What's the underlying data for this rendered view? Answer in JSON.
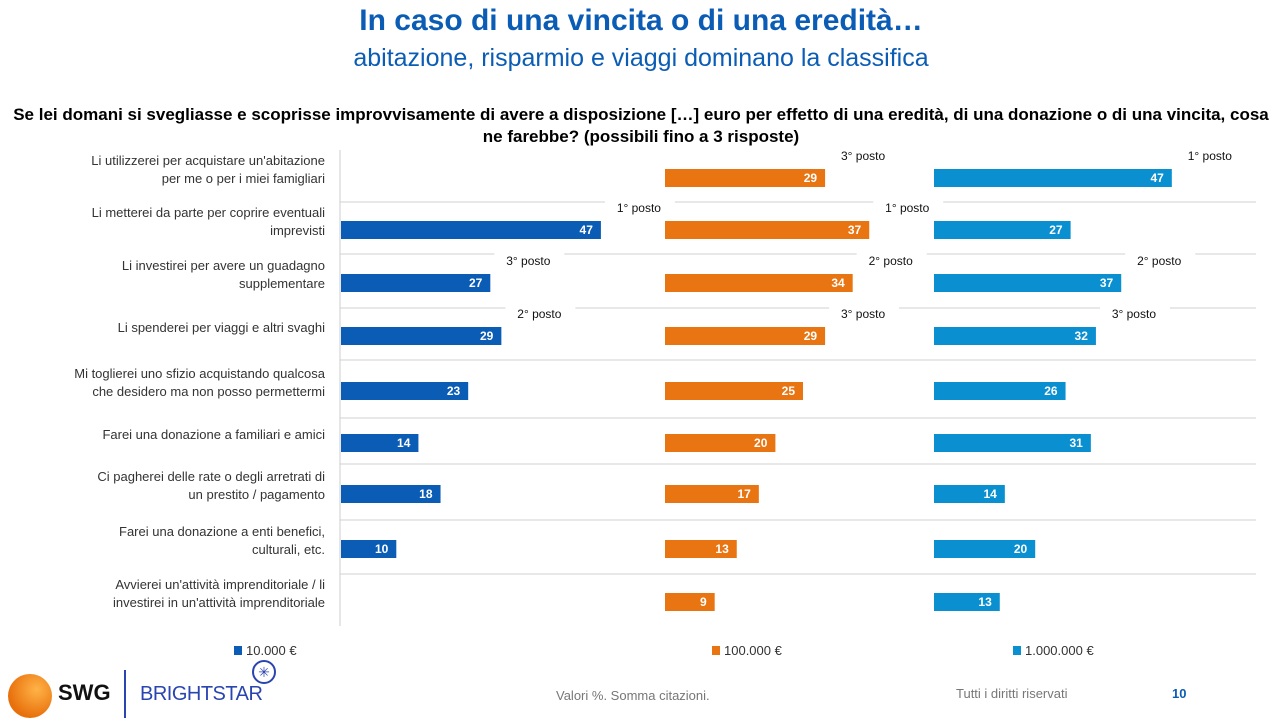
{
  "header": {
    "title": "In caso di una vincita o di una eredità…",
    "subtitle": "abitazione, risparmio e viaggi dominano la classifica"
  },
  "question": "Se lei domani si svegliasse e scoprisse improvvisamente di avere a disposizione […] euro per effetto di una eredità, di una donazione o di una vincita, cosa ne farebbe? (possibili fino a 3 risposte)",
  "chart_data": {
    "type": "bar",
    "orientation": "horizontal",
    "categories": [
      "Li utilizzerei per acquistare un'abitazione per me o per i miei famigliari",
      "Li metterei da parte per coprire eventuali imprevisti",
      "Li investirei per avere un guadagno supplementare",
      "Li spenderei per viaggi e altri svaghi",
      "Mi toglierei uno sfizio acquistando qualcosa che desidero ma non posso permettermi",
      "Farei una donazione a familiari e amici",
      "Ci pagherei delle rate o degli arretrati di un prestito / pagamento",
      "Farei una donazione a enti benefici, culturali, etc.",
      "Avvierei un'attività imprenditoriale / li investirei in un'attività imprenditoriale"
    ],
    "series": [
      {
        "name": "10.000 €",
        "color": "#0b5cb5",
        "values": [
          null,
          47,
          27,
          29,
          23,
          14,
          18,
          10,
          null
        ],
        "ranks": [
          null,
          "1° posto",
          "3° posto",
          "2° posto",
          null,
          null,
          null,
          null,
          null
        ]
      },
      {
        "name": "100.000 €",
        "color": "#e87511",
        "values": [
          29,
          37,
          34,
          29,
          25,
          20,
          17,
          13,
          9
        ],
        "ranks": [
          "3° posto",
          "1° posto",
          "2° posto",
          "3° posto",
          null,
          null,
          null,
          null,
          null
        ]
      },
      {
        "name": "1.000.000 €",
        "color": "#0a90d0",
        "values": [
          47,
          27,
          37,
          32,
          26,
          31,
          14,
          20,
          13
        ],
        "ranks": [
          "1° posto",
          null,
          "2° posto",
          "3° posto",
          null,
          null,
          null,
          null,
          null
        ]
      }
    ],
    "legend": "bottom",
    "grid": "row separators"
  },
  "footer": {
    "note": "Valori %. Somma citazioni.",
    "rights": "Tutti i diritti riservati",
    "page": "10",
    "logo_swg": "SWG",
    "logo_brightstar": "BRIGHTSTAR"
  }
}
